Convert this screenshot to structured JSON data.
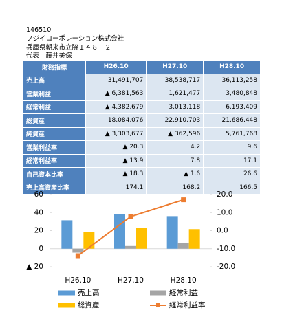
{
  "header": {
    "code": "146510",
    "company": "フジイコーポレーション株式会社",
    "address": "兵庫県朝来市立脇１４８－２",
    "representative": "代表　藤井美保"
  },
  "table": {
    "header": [
      "財務指標",
      "H26.10",
      "H27.10",
      "H28.10"
    ],
    "rows": [
      [
        "売上高",
        "31,491,707",
        "38,538,717",
        "36,113,258"
      ],
      [
        "営業利益",
        "▲ 6,381,563",
        "1,621,477",
        "3,480,848"
      ],
      [
        "経常利益",
        "▲ 4,382,679",
        "3,013,118",
        "6,193,409"
      ],
      [
        "総資産",
        "18,084,076",
        "22,910,703",
        "21,686,448"
      ],
      [
        "純資産",
        "▲ 3,303,677",
        "▲ 362,596",
        "5,761,768"
      ],
      [
        "営業利益率",
        "▲ 20.3",
        "4.2",
        "9.6"
      ],
      [
        "経常利益率",
        "▲ 13.9",
        "7.8",
        "17.1"
      ],
      [
        "自己資本比率",
        "▲ 18.3",
        "▲ 1.6",
        "26.6"
      ],
      [
        "売上高資産比率",
        "174.1",
        "168.2",
        "166.5"
      ]
    ]
  },
  "chart_data": {
    "type": "bar",
    "categories": [
      "H26.10",
      "H27.10",
      "H28.10"
    ],
    "ylim": [
      -20,
      60
    ],
    "yticks": [
      60,
      40,
      20,
      0,
      {
        "value": -20,
        "label": "▲ 20"
      }
    ],
    "y2lim": [
      -20,
      20
    ],
    "y2ticks": [
      {
        "value": 20,
        "label": "20.0"
      },
      {
        "value": 10,
        "label": "10.0"
      },
      {
        "value": 0,
        "label": "0.0"
      },
      {
        "value": -10,
        "label": "-10.0"
      },
      {
        "value": -20,
        "label": "-20.0"
      }
    ],
    "series": [
      {
        "name": "売上高",
        "color": "#5b9bd5",
        "values": [
          31.5,
          38.5,
          36.1
        ]
      },
      {
        "name": "経常利益",
        "color": "#a5a5a5",
        "values": [
          -4.4,
          3.0,
          6.2
        ]
      },
      {
        "name": "総資産",
        "color": "#ffc000",
        "values": [
          18.1,
          22.9,
          21.7
        ]
      },
      {
        "name": "経常利益率",
        "color": "#ed7d31",
        "type": "line",
        "axis": "y2",
        "values": [
          -13.9,
          7.8,
          17.1
        ]
      }
    ]
  }
}
